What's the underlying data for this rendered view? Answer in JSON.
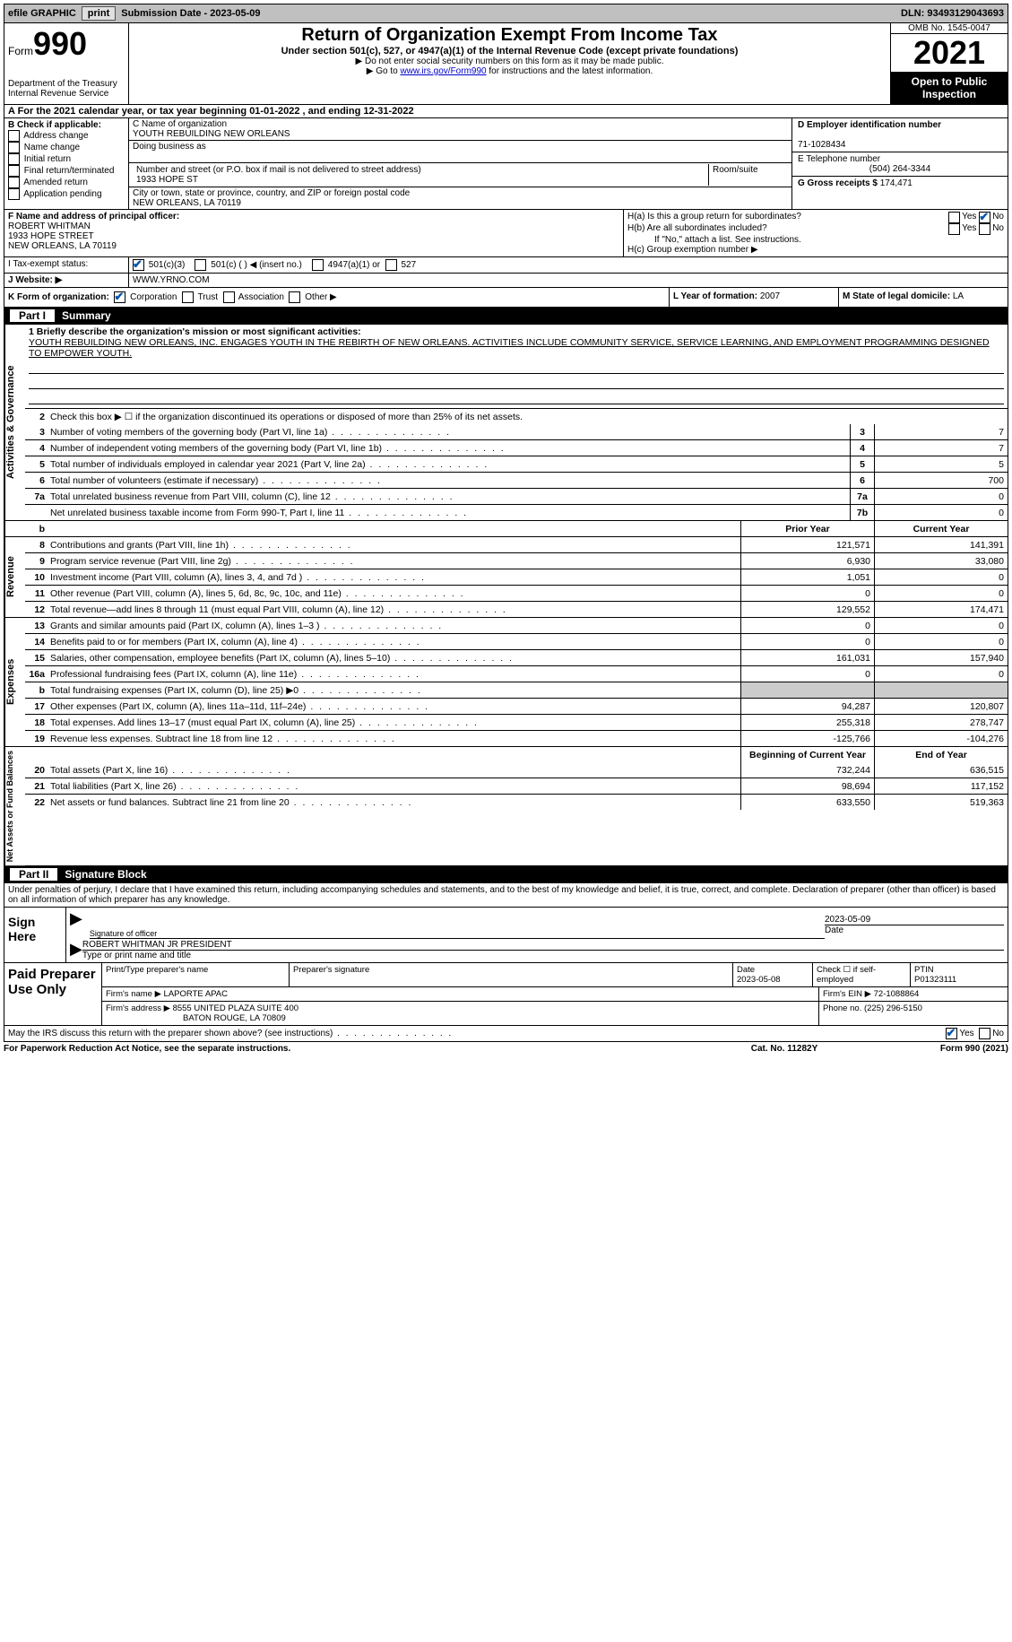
{
  "topbar": {
    "efile_label": "efile GRAPHIC",
    "print_btn": "print",
    "submission_label": "Submission Date - 2023-05-09",
    "dln_label": "DLN: 93493129043693"
  },
  "header": {
    "form_word": "Form",
    "form_num": "990",
    "dept": "Department of the Treasury",
    "irs": "Internal Revenue Service",
    "title": "Return of Organization Exempt From Income Tax",
    "subtitle": "Under section 501(c), 527, or 4947(a)(1) of the Internal Revenue Code (except private foundations)",
    "note1": "▶ Do not enter social security numbers on this form as it may be made public.",
    "note2_pre": "▶ Go to ",
    "note2_link": "www.irs.gov/Form990",
    "note2_post": " for instructions and the latest information.",
    "omb": "OMB No. 1545-0047",
    "year": "2021",
    "open": "Open to Public Inspection"
  },
  "period": {
    "line": "A For the 2021 calendar year, or tax year beginning 01-01-2022   , and ending 12-31-2022"
  },
  "boxB": {
    "label": "B Check if applicable:",
    "items": [
      "Address change",
      "Name change",
      "Initial return",
      "Final return/terminated",
      "Amended return",
      "Application pending"
    ]
  },
  "boxC": {
    "name_label": "C Name of organization",
    "name": "YOUTH REBUILDING NEW ORLEANS",
    "dba_label": "Doing business as",
    "dba": "",
    "addr_label": "Number and street (or P.O. box if mail is not delivered to street address)",
    "room_label": "Room/suite",
    "addr": "1933 HOPE ST",
    "city_label": "City or town, state or province, country, and ZIP or foreign postal code",
    "city": "NEW ORLEANS, LA  70119"
  },
  "boxD": {
    "label": "D Employer identification number",
    "value": "71-1028434"
  },
  "boxE": {
    "label": "E Telephone number",
    "value": "(504) 264-3344"
  },
  "boxG": {
    "label": "G Gross receipts $",
    "value": "174,471"
  },
  "boxF": {
    "label": "F  Name and address of principal officer:",
    "name": "ROBERT WHITMAN",
    "addr1": "1933 HOPE STREET",
    "addr2": "NEW ORLEANS, LA  70119"
  },
  "boxH": {
    "a_label": "H(a)  Is this a group return for subordinates?",
    "b_label": "H(b)  Are all subordinates included?",
    "b_note": "If \"No,\" attach a list. See instructions.",
    "c_label": "H(c)  Group exemption number ▶",
    "yes": "Yes",
    "no": "No"
  },
  "boxI": {
    "label": "I    Tax-exempt status:",
    "opt1": "501(c)(3)",
    "opt2": "501(c) (  ) ◀ (insert no.)",
    "opt3": "4947(a)(1) or",
    "opt4": "527"
  },
  "boxJ": {
    "label": "J   Website: ▶",
    "value": "WWW.YRNO.COM"
  },
  "boxK": {
    "label": "K Form of organization:",
    "opts": [
      "Corporation",
      "Trust",
      "Association",
      "Other ▶"
    ]
  },
  "boxL": {
    "label": "L Year of formation:",
    "value": "2007"
  },
  "boxM": {
    "label": "M State of legal domicile:",
    "value": "LA"
  },
  "part1": {
    "title": "Part I",
    "name": "Summary",
    "q1_label": "1   Briefly describe the organization's mission or most significant activities:",
    "q1_text": "YOUTH REBUILDING NEW ORLEANS, INC. ENGAGES YOUTH IN THE REBIRTH OF NEW ORLEANS. ACTIVITIES INCLUDE COMMUNITY SERVICE, SERVICE LEARNING, AND EMPLOYMENT PROGRAMMING DESIGNED TO EMPOWER YOUTH.",
    "q2": "Check this box ▶ ☐ if the organization discontinued its operations or disposed of more than 25% of its net assets.",
    "lines_single": [
      {
        "n": "3",
        "t": "Number of voting members of the governing body (Part VI, line 1a)",
        "box": "3",
        "v": "7"
      },
      {
        "n": "4",
        "t": "Number of independent voting members of the governing body (Part VI, line 1b)",
        "box": "4",
        "v": "7"
      },
      {
        "n": "5",
        "t": "Total number of individuals employed in calendar year 2021 (Part V, line 2a)",
        "box": "5",
        "v": "5"
      },
      {
        "n": "6",
        "t": "Total number of volunteers (estimate if necessary)",
        "box": "6",
        "v": "700"
      },
      {
        "n": "7a",
        "t": "Total unrelated business revenue from Part VIII, column (C), line 12",
        "box": "7a",
        "v": "0"
      },
      {
        "n": "",
        "t": "Net unrelated business taxable income from Form 990-T, Part I, line 11",
        "box": "7b",
        "v": "0"
      }
    ],
    "col_prior": "Prior Year",
    "col_curr": "Current Year",
    "revenue": [
      {
        "n": "8",
        "t": "Contributions and grants (Part VIII, line 1h)",
        "p": "121,571",
        "c": "141,391"
      },
      {
        "n": "9",
        "t": "Program service revenue (Part VIII, line 2g)",
        "p": "6,930",
        "c": "33,080"
      },
      {
        "n": "10",
        "t": "Investment income (Part VIII, column (A), lines 3, 4, and 7d )",
        "p": "1,051",
        "c": "0"
      },
      {
        "n": "11",
        "t": "Other revenue (Part VIII, column (A), lines 5, 6d, 8c, 9c, 10c, and 11e)",
        "p": "0",
        "c": "0"
      },
      {
        "n": "12",
        "t": "Total revenue—add lines 8 through 11 (must equal Part VIII, column (A), line 12)",
        "p": "129,552",
        "c": "174,471"
      }
    ],
    "expenses": [
      {
        "n": "13",
        "t": "Grants and similar amounts paid (Part IX, column (A), lines 1–3 )",
        "p": "0",
        "c": "0"
      },
      {
        "n": "14",
        "t": "Benefits paid to or for members (Part IX, column (A), line 4)",
        "p": "0",
        "c": "0"
      },
      {
        "n": "15",
        "t": "Salaries, other compensation, employee benefits (Part IX, column (A), lines 5–10)",
        "p": "161,031",
        "c": "157,940"
      },
      {
        "n": "16a",
        "t": "Professional fundraising fees (Part IX, column (A), line 11e)",
        "p": "0",
        "c": "0"
      },
      {
        "n": "b",
        "t": "Total fundraising expenses (Part IX, column (D), line 25) ▶0",
        "p": "",
        "c": "",
        "shade": true
      },
      {
        "n": "17",
        "t": "Other expenses (Part IX, column (A), lines 11a–11d, 11f–24e)",
        "p": "94,287",
        "c": "120,807"
      },
      {
        "n": "18",
        "t": "Total expenses. Add lines 13–17 (must equal Part IX, column (A), line 25)",
        "p": "255,318",
        "c": "278,747"
      },
      {
        "n": "19",
        "t": "Revenue less expenses. Subtract line 18 from line 12",
        "p": "-125,766",
        "c": "-104,276"
      }
    ],
    "col_beg": "Beginning of Current Year",
    "col_end": "End of Year",
    "netassets": [
      {
        "n": "20",
        "t": "Total assets (Part X, line 16)",
        "p": "732,244",
        "c": "636,515"
      },
      {
        "n": "21",
        "t": "Total liabilities (Part X, line 26)",
        "p": "98,694",
        "c": "117,152"
      },
      {
        "n": "22",
        "t": "Net assets or fund balances. Subtract line 21 from line 20",
        "p": "633,550",
        "c": "519,363"
      }
    ],
    "vtab_ag": "Activities & Governance",
    "vtab_rev": "Revenue",
    "vtab_exp": "Expenses",
    "vtab_na": "Net Assets or Fund Balances"
  },
  "part2": {
    "title": "Part II",
    "name": "Signature Block",
    "penalties": "Under penalties of perjury, I declare that I have examined this return, including accompanying schedules and statements, and to the best of my knowledge and belief, it is true, correct, and complete. Declaration of preparer (other than officer) is based on all information of which preparer has any knowledge.",
    "sign_here": "Sign Here",
    "sig_officer": "Signature of officer",
    "sig_date": "2023-05-09",
    "date_label": "Date",
    "officer_name": "ROBERT WHITMAN JR  PRESIDENT",
    "type_name": "Type or print name and title",
    "paid": "Paid Preparer Use Only",
    "prep_name_label": "Print/Type preparer's name",
    "prep_sig_label": "Preparer's signature",
    "prep_date_label": "Date",
    "prep_date": "2023-05-08",
    "check_if": "Check ☐ if self-employed",
    "ptin_label": "PTIN",
    "ptin": "P01323111",
    "firm_name_label": "Firm's name    ▶",
    "firm_name": "LAPORTE APAC",
    "firm_ein_label": "Firm's EIN ▶",
    "firm_ein": "72-1088864",
    "firm_addr_label": "Firm's address ▶",
    "firm_addr1": "8555 UNITED PLAZA SUITE 400",
    "firm_addr2": "BATON ROUGE, LA  70809",
    "phone_label": "Phone no.",
    "phone": "(225) 296-5150"
  },
  "discuss": {
    "text": "May the IRS discuss this return with the preparer shown above? (see instructions)",
    "yes": "Yes",
    "no": "No"
  },
  "footer": {
    "left": "For Paperwork Reduction Act Notice, see the separate instructions.",
    "mid": "Cat. No. 11282Y",
    "right": "Form 990 (2021)"
  },
  "colors": {
    "link": "#0000cc",
    "check": "#0055aa",
    "shade": "#cccccc"
  }
}
